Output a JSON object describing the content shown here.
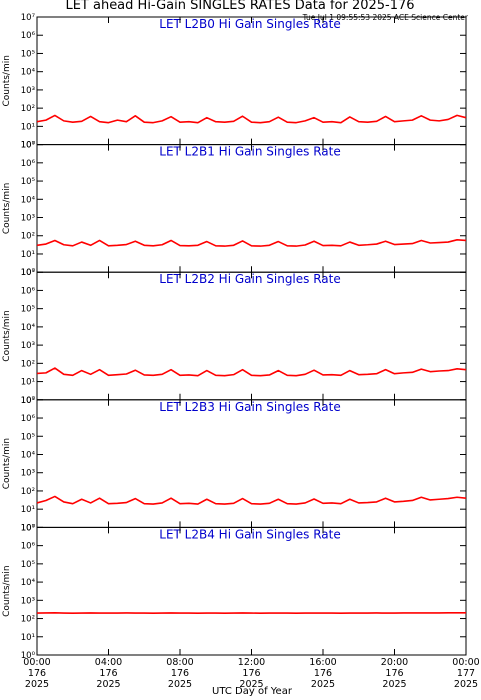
{
  "title": "LET ahead Hi-Gain SINGLES RATES Data for 2025-176",
  "timestamp": "Tue Jul  1 09:55:53 2025 ACE Science Center",
  "x_label": "UTC Day of Year",
  "chart_data": [
    {
      "type": "line",
      "title": "LET L2B0 Hi Gain Singles Rate",
      "ylabel": "Counts/min",
      "color": "#ff0000",
      "log_scale": true,
      "ylim": [
        1,
        10000000
      ],
      "yticks": [
        {
          "value": 1,
          "label": "10⁰"
        },
        {
          "value": 10,
          "label": "10¹"
        },
        {
          "value": 100,
          "label": "10²"
        },
        {
          "value": 1000,
          "label": "10³"
        },
        {
          "value": 10000,
          "label": "10⁴"
        },
        {
          "value": 100000,
          "label": "10⁵"
        },
        {
          "value": 1000000,
          "label": "10⁶"
        },
        {
          "value": 10000000,
          "label": "10⁷"
        }
      ],
      "xlim": [
        0,
        24
      ],
      "xticks": [
        0,
        4,
        8,
        12,
        16,
        20,
        24
      ],
      "x": [
        0,
        0.5,
        1,
        1.5,
        2,
        2.5,
        3,
        3.5,
        4,
        4.5,
        5,
        5.5,
        6,
        6.5,
        7,
        7.5,
        8,
        8.5,
        9,
        9.5,
        10,
        10.5,
        11,
        11.5,
        12,
        12.5,
        13,
        13.5,
        14,
        14.5,
        15,
        15.5,
        16,
        16.5,
        17,
        17.5,
        18,
        18.5,
        19,
        19.5,
        20,
        20.5,
        21,
        21.5,
        22,
        22.5,
        23,
        23.5,
        24
      ],
      "values": [
        18,
        22,
        40,
        20,
        17,
        19,
        35,
        18,
        16,
        22,
        18,
        38,
        17,
        16,
        20,
        34,
        17,
        18,
        16,
        30,
        18,
        17,
        19,
        36,
        17,
        16,
        18,
        32,
        17,
        16,
        20,
        30,
        17,
        18,
        16,
        33,
        18,
        17,
        19,
        35,
        18,
        20,
        22,
        38,
        22,
        20,
        24,
        40,
        30
      ]
    },
    {
      "type": "line",
      "title": "LET L2B1 Hi Gain Singles Rate",
      "ylabel": "Counts/min",
      "color": "#ff0000",
      "log_scale": true,
      "ylim": [
        1,
        10000000
      ],
      "yticks": [
        {
          "value": 1,
          "label": "10⁰"
        },
        {
          "value": 10,
          "label": "10¹"
        },
        {
          "value": 100,
          "label": "10²"
        },
        {
          "value": 1000,
          "label": "10³"
        },
        {
          "value": 10000,
          "label": "10⁴"
        },
        {
          "value": 100000,
          "label": "10⁵"
        },
        {
          "value": 1000000,
          "label": "10⁶"
        },
        {
          "value": 10000000,
          "label": "10⁷"
        }
      ],
      "xlim": [
        0,
        24
      ],
      "xticks": [
        0,
        4,
        8,
        12,
        16,
        20,
        24
      ],
      "x": [
        0,
        0.5,
        1,
        1.5,
        2,
        2.5,
        3,
        3.5,
        4,
        4.5,
        5,
        5.5,
        6,
        6.5,
        7,
        7.5,
        8,
        8.5,
        9,
        9.5,
        10,
        10.5,
        11,
        11.5,
        12,
        12.5,
        13,
        13.5,
        14,
        14.5,
        15,
        15.5,
        16,
        16.5,
        17,
        17.5,
        18,
        18.5,
        19,
        19.5,
        20,
        20.5,
        21,
        21.5,
        22,
        22.5,
        23,
        23.5,
        24
      ],
      "values": [
        30,
        35,
        55,
        32,
        28,
        45,
        30,
        55,
        28,
        30,
        33,
        50,
        30,
        28,
        32,
        55,
        29,
        28,
        30,
        48,
        28,
        27,
        30,
        52,
        28,
        27,
        30,
        48,
        28,
        27,
        31,
        50,
        29,
        30,
        28,
        45,
        30,
        32,
        35,
        50,
        33,
        35,
        37,
        55,
        40,
        42,
        45,
        60,
        55
      ]
    },
    {
      "type": "line",
      "title": "LET L2B2 Hi Gain Singles Rate",
      "ylabel": "Counts/min",
      "color": "#ff0000",
      "log_scale": true,
      "ylim": [
        1,
        10000000
      ],
      "yticks": [
        {
          "value": 1,
          "label": "10⁰"
        },
        {
          "value": 10,
          "label": "10¹"
        },
        {
          "value": 100,
          "label": "10²"
        },
        {
          "value": 1000,
          "label": "10³"
        },
        {
          "value": 10000,
          "label": "10⁴"
        },
        {
          "value": 100000,
          "label": "10⁵"
        },
        {
          "value": 1000000,
          "label": "10⁶"
        },
        {
          "value": 10000000,
          "label": "10⁷"
        }
      ],
      "xlim": [
        0,
        24
      ],
      "xticks": [
        0,
        4,
        8,
        12,
        16,
        20,
        24
      ],
      "x": [
        0,
        0.5,
        1,
        1.5,
        2,
        2.5,
        3,
        3.5,
        4,
        4.5,
        5,
        5.5,
        6,
        6.5,
        7,
        7.5,
        8,
        8.5,
        9,
        9.5,
        10,
        10.5,
        11,
        11.5,
        12,
        12.5,
        13,
        13.5,
        14,
        14.5,
        15,
        15.5,
        16,
        16.5,
        17,
        17.5,
        18,
        18.5,
        19,
        19.5,
        20,
        20.5,
        21,
        21.5,
        22,
        22.5,
        23,
        23.5,
        24
      ],
      "values": [
        28,
        30,
        55,
        25,
        22,
        40,
        25,
        45,
        22,
        24,
        26,
        42,
        23,
        22,
        25,
        45,
        22,
        23,
        21,
        40,
        22,
        21,
        24,
        45,
        22,
        21,
        23,
        40,
        22,
        21,
        25,
        42,
        23,
        24,
        22,
        40,
        24,
        25,
        27,
        45,
        27,
        30,
        32,
        48,
        35,
        38,
        40,
        50,
        45
      ]
    },
    {
      "type": "line",
      "title": "LET L2B3 Hi Gain Singles Rate",
      "ylabel": "Counts/min",
      "color": "#ff0000",
      "log_scale": true,
      "ylim": [
        1,
        10000000
      ],
      "yticks": [
        {
          "value": 1,
          "label": "10⁰"
        },
        {
          "value": 10,
          "label": "10¹"
        },
        {
          "value": 100,
          "label": "10²"
        },
        {
          "value": 1000,
          "label": "10³"
        },
        {
          "value": 10000,
          "label": "10⁴"
        },
        {
          "value": 100000,
          "label": "10⁵"
        },
        {
          "value": 1000000,
          "label": "10⁶"
        },
        {
          "value": 10000000,
          "label": "10⁷"
        }
      ],
      "xlim": [
        0,
        24
      ],
      "xticks": [
        0,
        4,
        8,
        12,
        16,
        20,
        24
      ],
      "x": [
        0,
        0.5,
        1,
        1.5,
        2,
        2.5,
        3,
        3.5,
        4,
        4.5,
        5,
        5.5,
        6,
        6.5,
        7,
        7.5,
        8,
        8.5,
        9,
        9.5,
        10,
        10.5,
        11,
        11.5,
        12,
        12.5,
        13,
        13.5,
        14,
        14.5,
        15,
        15.5,
        16,
        16.5,
        17,
        17.5,
        18,
        18.5,
        19,
        19.5,
        20,
        20.5,
        21,
        21.5,
        22,
        22.5,
        23,
        23.5,
        24
      ],
      "values": [
        22,
        30,
        50,
        25,
        20,
        35,
        22,
        40,
        20,
        21,
        23,
        38,
        20,
        19,
        22,
        40,
        20,
        21,
        19,
        35,
        20,
        19,
        21,
        38,
        20,
        19,
        21,
        35,
        20,
        19,
        22,
        36,
        21,
        22,
        20,
        35,
        22,
        23,
        25,
        40,
        25,
        27,
        30,
        45,
        32,
        35,
        38,
        45,
        40
      ]
    },
    {
      "type": "line",
      "title": "LET L2B4 Hi Gain Singles Rate",
      "ylabel": "Counts/min",
      "color": "#ff0000",
      "log_scale": true,
      "ylim": [
        1,
        10000000
      ],
      "yticks": [
        {
          "value": 1,
          "label": "10⁰"
        },
        {
          "value": 10,
          "label": "10¹"
        },
        {
          "value": 100,
          "label": "10²"
        },
        {
          "value": 1000,
          "label": "10³"
        },
        {
          "value": 10000,
          "label": "10⁴"
        },
        {
          "value": 100000,
          "label": "10⁵"
        },
        {
          "value": 1000000,
          "label": "10⁶"
        },
        {
          "value": 10000000,
          "label": "10⁷"
        }
      ],
      "xlim": [
        0,
        24
      ],
      "xticks": [
        {
          "value": 0,
          "label": [
            "00:00",
            "176",
            "2025"
          ]
        },
        {
          "value": 4,
          "label": [
            "04:00",
            "176",
            "2025"
          ]
        },
        {
          "value": 8,
          "label": [
            "08:00",
            "176",
            "2025"
          ]
        },
        {
          "value": 12,
          "label": [
            "12:00",
            "176",
            "2025"
          ]
        },
        {
          "value": 16,
          "label": [
            "16:00",
            "176",
            "2025"
          ]
        },
        {
          "value": 20,
          "label": [
            "20:00",
            "176",
            "2025"
          ]
        },
        {
          "value": 24,
          "label": [
            "00:00",
            "177",
            "2025"
          ]
        }
      ],
      "x": [
        0,
        0.5,
        1,
        1.5,
        2,
        2.5,
        3,
        3.5,
        4,
        4.5,
        5,
        5.5,
        6,
        6.5,
        7,
        7.5,
        8,
        8.5,
        9,
        9.5,
        10,
        10.5,
        11,
        11.5,
        12,
        12.5,
        13,
        13.5,
        14,
        14.5,
        15,
        15.5,
        16,
        16.5,
        17,
        17.5,
        18,
        18.5,
        19,
        19.5,
        20,
        20.5,
        21,
        21.5,
        22,
        22.5,
        23,
        23.5,
        24
      ],
      "values": [
        200,
        202,
        205,
        200,
        198,
        201,
        203,
        200,
        199,
        200,
        202,
        201,
        199,
        198,
        200,
        202,
        199,
        200,
        198,
        201,
        199,
        198,
        200,
        202,
        199,
        198,
        199,
        201,
        199,
        198,
        200,
        201,
        199,
        200,
        198,
        200,
        200,
        201,
        202,
        200,
        201,
        202,
        203,
        202,
        203,
        204,
        205,
        205,
        206
      ]
    }
  ]
}
